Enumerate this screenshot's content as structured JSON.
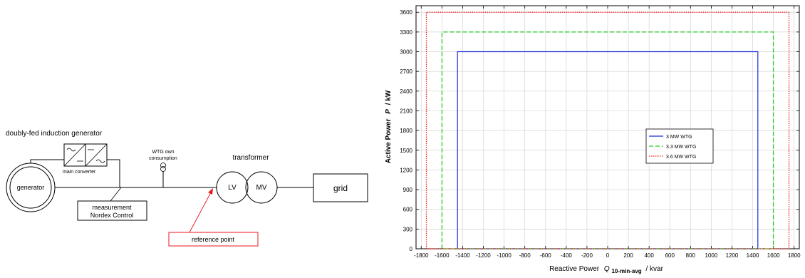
{
  "diagram": {
    "title": "doubly-fed induction generator",
    "generator": "generator",
    "main_converter": "main converter",
    "wtg_own_line1": "WTG own",
    "wtg_own_line2": "consumption",
    "transformer": "transformer",
    "lv": "LV",
    "mv": "MV",
    "grid": "grid",
    "measurement_line1": "measurement",
    "measurement_line2": "Nordex Control",
    "reference_point": "reference point",
    "colors": {
      "line": "#000000",
      "reference": "#e41a1c"
    }
  },
  "chart_data": {
    "type": "line",
    "ylabel_prefix": "Active Power",
    "ylabel_symbol": "P",
    "ylabel_unit": "/ kW",
    "xlabel_prefix": "Reactive Power",
    "xlabel_symbol": "Q",
    "xlabel_subscript": "10-min-avg",
    "xlabel_unit": "/ kvar",
    "xlim": [
      -1850,
      1850
    ],
    "ylim": [
      0,
      3700
    ],
    "xticks": [
      -1800,
      -1600,
      -1400,
      -1200,
      -1000,
      -800,
      -600,
      -400,
      -200,
      0,
      200,
      400,
      600,
      800,
      1000,
      1200,
      1400,
      1600,
      1800
    ],
    "yticks": [
      0,
      300,
      600,
      900,
      1200,
      1500,
      1800,
      2100,
      2400,
      2700,
      3000,
      3300,
      3600
    ],
    "grid": true,
    "legend_position": "center-right",
    "series": [
      {
        "name": "3 MW WTG",
        "color": "#1f2fd6",
        "dash": "solid",
        "x": [
          -1450,
          -1450,
          1450,
          1450,
          -1450
        ],
        "y": [
          0,
          3000,
          3000,
          0,
          0
        ]
      },
      {
        "name": "3.3 MW WTG",
        "color": "#22cc22",
        "dash": "dashed",
        "x": [
          -1600,
          -1600,
          1600,
          1600,
          -1600
        ],
        "y": [
          0,
          3300,
          3300,
          0,
          0
        ]
      },
      {
        "name": "3.6 MW WTG",
        "color": "#ee2222",
        "dash": "dotted",
        "x": [
          -1750,
          -1750,
          1750,
          1750,
          -1750
        ],
        "y": [
          0,
          3600,
          3600,
          0,
          0
        ]
      }
    ]
  }
}
